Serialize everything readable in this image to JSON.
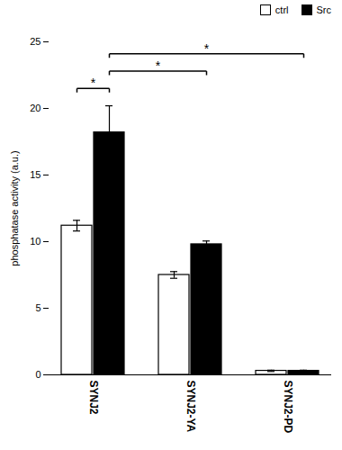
{
  "chart_data": {
    "type": "bar",
    "categories": [
      "SYNJ2",
      "SYNJ2-YA",
      "SYNJ2-PD"
    ],
    "series": [
      {
        "name": "ctrl",
        "color": "#ffffff",
        "values": [
          11.2,
          7.5,
          0.3
        ],
        "errors": [
          0.4,
          0.25,
          0.05
        ]
      },
      {
        "name": "Src",
        "color": "#000000",
        "values": [
          18.2,
          9.8,
          0.3
        ],
        "errors": [
          2.0,
          0.25,
          0.05
        ]
      }
    ],
    "ylabel": "phosphatase activity (a.u.)",
    "ylim": [
      0,
      25
    ],
    "yticks": [
      0,
      5,
      10,
      15,
      20,
      25
    ],
    "grid": false,
    "legend": "upper right",
    "annotations": [
      {
        "text": "*",
        "from": {
          "category": "SYNJ2",
          "series": "ctrl"
        },
        "to": {
          "category": "SYNJ2",
          "series": "Src"
        },
        "y": 21.5
      },
      {
        "text": "*",
        "from": {
          "category": "SYNJ2",
          "series": "Src"
        },
        "to": {
          "category": "SYNJ2-YA",
          "series": "Src"
        },
        "y": 22.8
      },
      {
        "text": "*",
        "from": {
          "category": "SYNJ2",
          "series": "Src"
        },
        "to": {
          "category": "SYNJ2-PD",
          "series": "Src"
        },
        "y": 24.1
      }
    ]
  }
}
